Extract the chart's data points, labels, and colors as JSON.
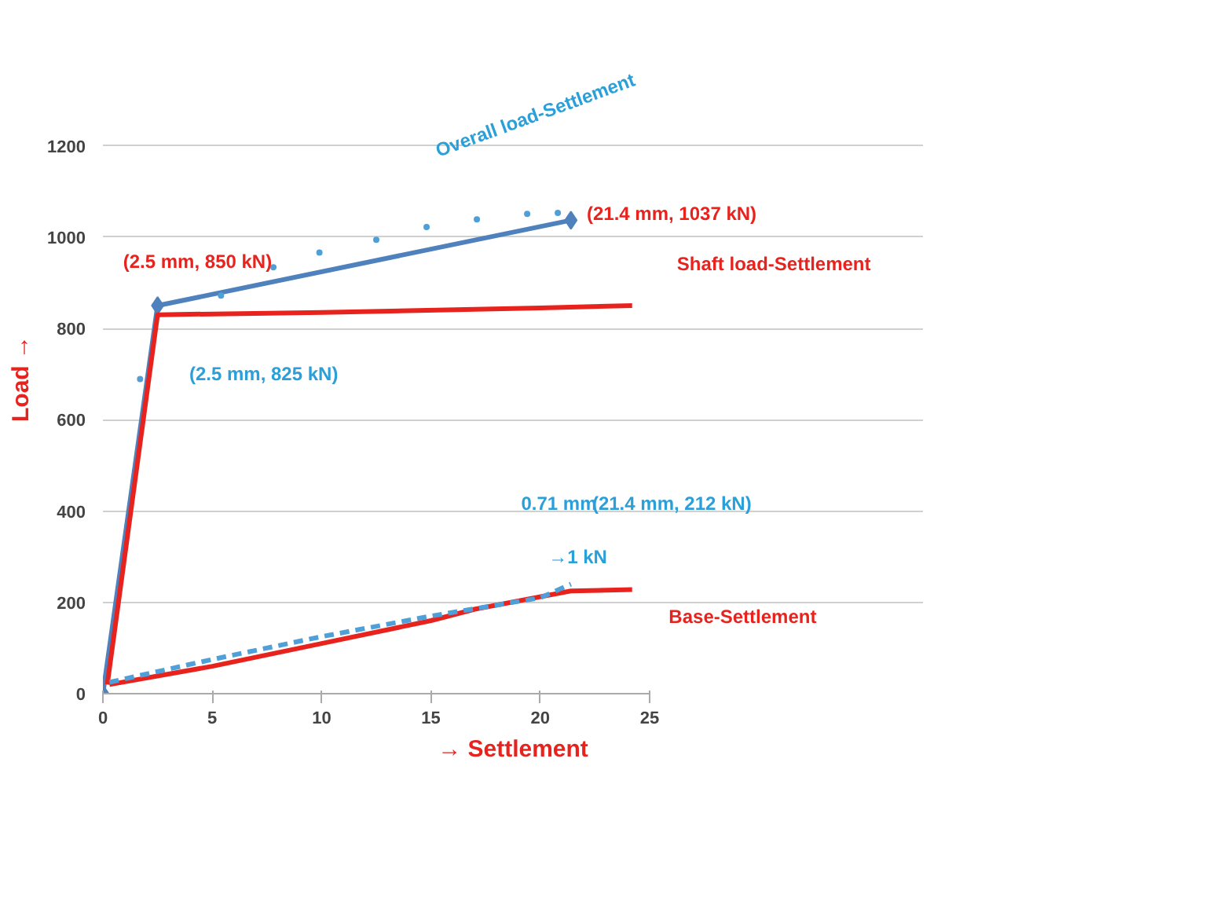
{
  "chart_data": {
    "type": "line",
    "xlabel": "→ Settlement",
    "ylabel": "Load →",
    "xlim": [
      0,
      25
    ],
    "xticks": [
      0,
      5,
      10,
      15,
      20,
      25
    ],
    "ylim": [
      0,
      1200
    ],
    "yticks": [
      0,
      200,
      400,
      600,
      800,
      1000,
      1200
    ],
    "grid": "y",
    "series": [
      {
        "color": "#4f81bd",
        "x": [
          0,
          2.5,
          21.4
        ],
        "values": [
          0,
          850,
          1037
        ],
        "marker": "diamond"
      },
      {
        "color": "#e8231e",
        "x": [
          0.2,
          2.5,
          10,
          20,
          24.2
        ],
        "values": [
          20,
          830,
          835,
          845,
          850
        ]
      },
      {
        "color": "#e8231e",
        "x": [
          0.3,
          5,
          10,
          15,
          17,
          21.4,
          24.2
        ],
        "values": [
          20,
          60,
          110,
          160,
          185,
          225,
          228
        ]
      },
      {
        "color": "#4f9fd8",
        "x": [
          0.3,
          5,
          10,
          15,
          20,
          21.4
        ],
        "values": [
          25,
          75,
          125,
          170,
          210,
          240
        ],
        "line_style": "dashed"
      },
      {
        "type": "scatter",
        "color": "#4f9fd8",
        "x": [
          1.7,
          5.4,
          7.8,
          9.9,
          12.5,
          14.8,
          17.1,
          19.4,
          20.8
        ],
        "values": [
          689,
          872,
          934,
          966,
          994,
          1022,
          1039,
          1051,
          1053
        ],
        "marker": "circle"
      }
    ],
    "annotations": [
      "Overall load-Settlement",
      "(21.4 mm, 1037 kN)",
      "Shaft load-Settlement",
      "(2.5 mm, 850 kN)",
      "(2.5 mm, 825 kN)",
      "0.71 mm",
      "(21.4 mm, 212 kN)",
      "→1 kN",
      "Base-Settlement"
    ]
  }
}
